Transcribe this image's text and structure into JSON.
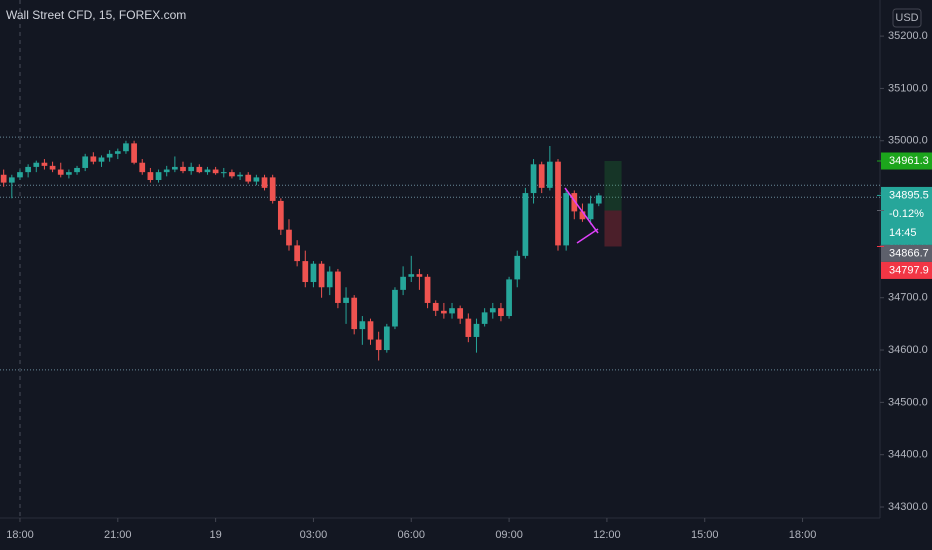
{
  "header": {
    "title": "Wall Street CFD, 15, FOREX.com",
    "currency": "USD"
  },
  "chart_data": {
    "type": "candlestick",
    "up_color": "#26a69a",
    "down_color": "#ef5350",
    "candles": [
      [
        34935,
        34945,
        34912,
        34920
      ],
      [
        34920,
        34935,
        34890,
        34930
      ],
      [
        34930,
        34945,
        34925,
        34940
      ],
      [
        34940,
        34955,
        34930,
        34950
      ],
      [
        34950,
        34962,
        34940,
        34958
      ],
      [
        34958,
        34965,
        34945,
        34952
      ],
      [
        34952,
        34960,
        34940,
        34945
      ],
      [
        34945,
        34958,
        34930,
        34935
      ],
      [
        34935,
        34945,
        34928,
        34940
      ],
      [
        34940,
        34952,
        34935,
        34948
      ],
      [
        34948,
        34975,
        34942,
        34970
      ],
      [
        34970,
        34978,
        34955,
        34960
      ],
      [
        34960,
        34972,
        34950,
        34968
      ],
      [
        34968,
        34982,
        34960,
        34975
      ],
      [
        34975,
        34985,
        34965,
        34980
      ],
      [
        34980,
        35000,
        34975,
        34995
      ],
      [
        34995,
        35000,
        34955,
        34958
      ],
      [
        34958,
        34965,
        34935,
        34940
      ],
      [
        34940,
        34948,
        34920,
        34925
      ],
      [
        34925,
        34945,
        34920,
        34940
      ],
      [
        34940,
        34952,
        34932,
        34945
      ],
      [
        34945,
        34970,
        34940,
        34950
      ],
      [
        34950,
        34960,
        34938,
        34942
      ],
      [
        34942,
        34958,
        34935,
        34950
      ],
      [
        34950,
        34955,
        34938,
        34940
      ],
      [
        34940,
        34950,
        34935,
        34945
      ],
      [
        34945,
        34950,
        34935,
        34938
      ],
      [
        34938,
        34948,
        34930,
        34940
      ],
      [
        34940,
        34945,
        34928,
        34932
      ],
      [
        34932,
        34940,
        34925,
        34935
      ],
      [
        34935,
        34940,
        34918,
        34922
      ],
      [
        34922,
        34935,
        34915,
        34930
      ],
      [
        34930,
        34935,
        34905,
        34910
      ],
      [
        34930,
        34935,
        34880,
        34885
      ],
      [
        34885,
        34890,
        34820,
        34830
      ],
      [
        34830,
        34850,
        34790,
        34800
      ],
      [
        34800,
        34810,
        34760,
        34770
      ],
      [
        34770,
        34790,
        34720,
        34730
      ],
      [
        34730,
        34770,
        34720,
        34765
      ],
      [
        34765,
        34770,
        34700,
        34720
      ],
      [
        34720,
        34760,
        34705,
        34750
      ],
      [
        34750,
        34755,
        34680,
        34690
      ],
      [
        34690,
        34720,
        34650,
        34700
      ],
      [
        34700,
        34705,
        34630,
        34640
      ],
      [
        34640,
        34665,
        34610,
        34655
      ],
      [
        34655,
        34660,
        34610,
        34620
      ],
      [
        34620,
        34635,
        34580,
        34600
      ],
      [
        34600,
        34650,
        34595,
        34645
      ],
      [
        34645,
        34720,
        34640,
        34715
      ],
      [
        34715,
        34760,
        34705,
        34740
      ],
      [
        34740,
        34780,
        34730,
        34745
      ],
      [
        34745,
        34755,
        34715,
        34740
      ],
      [
        34740,
        34745,
        34680,
        34690
      ],
      [
        34690,
        34695,
        34665,
        34675
      ],
      [
        34675,
        34690,
        34660,
        34670
      ],
      [
        34670,
        34690,
        34660,
        34680
      ],
      [
        34680,
        34685,
        34650,
        34660
      ],
      [
        34660,
        34670,
        34615,
        34625
      ],
      [
        34625,
        34660,
        34595,
        34650
      ],
      [
        34650,
        34680,
        34645,
        34672
      ],
      [
        34672,
        34690,
        34660,
        34680
      ],
      [
        34680,
        34690,
        34655,
        34665
      ],
      [
        34665,
        34740,
        34660,
        34735
      ],
      [
        34735,
        34790,
        34720,
        34780
      ],
      [
        34780,
        34910,
        34775,
        34900
      ],
      [
        34900,
        34965,
        34880,
        34955
      ],
      [
        34955,
        34960,
        34900,
        34910
      ],
      [
        34910,
        34990,
        34905,
        34960
      ],
      [
        34960,
        34965,
        34790,
        34800
      ],
      [
        34800,
        34905,
        34790,
        34900
      ],
      [
        34900,
        34905,
        34850,
        34865
      ],
      [
        34865,
        34880,
        34845,
        34850
      ],
      [
        34850,
        34895,
        34840,
        34880
      ],
      [
        34880,
        34900,
        34875,
        34895.5
      ]
    ],
    "xlim": [
      -0.45,
      107.5
    ],
    "xticks": [
      {
        "value": 2,
        "label": "18:00"
      },
      {
        "value": 14,
        "label": "21:00"
      },
      {
        "value": 26,
        "label": "19"
      },
      {
        "value": 38,
        "label": "03:00"
      },
      {
        "value": 50,
        "label": "06:00"
      },
      {
        "value": 62,
        "label": "09:00"
      },
      {
        "value": 74,
        "label": "12:00"
      },
      {
        "value": 86,
        "label": "15:00"
      },
      {
        "value": 98,
        "label": "18:00"
      }
    ],
    "ylim": [
      34279,
      35269
    ],
    "yticks": [
      {
        "value": 35200,
        "label": "35200.0"
      },
      {
        "value": 35100,
        "label": "35100.0"
      },
      {
        "value": 35000,
        "label": "35000.0"
      },
      {
        "value": 34900,
        "label": "34900.0"
      },
      {
        "value": 34800,
        "label": "34800.0"
      },
      {
        "value": 34700,
        "label": "34700.0"
      },
      {
        "value": 34600,
        "label": "34600.0"
      },
      {
        "value": 34500,
        "label": "34500.0"
      },
      {
        "value": 34400,
        "label": "34400.0"
      },
      {
        "value": 34300,
        "label": "34300.0"
      }
    ],
    "horizontal_lines": [
      35007,
      34915,
      34892,
      34562
    ],
    "price_labels": [
      {
        "value": 34961.3,
        "color": "#1ca51c"
      },
      {
        "value": 34895.5,
        "color": "#26a69a",
        "change": "-0.12%",
        "countdown": "14:45"
      },
      {
        "value": 34866.7,
        "color": "#5d606b"
      },
      {
        "value": 34797.9,
        "color": "#f23645"
      }
    ]
  }
}
